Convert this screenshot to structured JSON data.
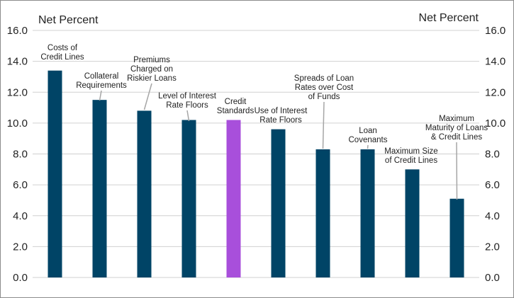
{
  "chart_data": {
    "type": "bar",
    "title": "",
    "ylabel_left": "Net Percent",
    "ylabel_right": "Net Percent",
    "xlabel": "",
    "ylim": [
      0,
      16
    ],
    "ytick_step": 2,
    "ytick_labels": [
      "0.0",
      "2.0",
      "4.0",
      "6.0",
      "8.0",
      "10.0",
      "12.0",
      "14.0",
      "16.0"
    ],
    "grid": true,
    "categories": [
      "Costs of Credit Lines",
      "Collateral Requirements",
      "Premiums Charged on Riskier Loans",
      "Level of Interest Rate Floors",
      "Credit Standards",
      "Use of Interest Rate Floors",
      "Spreads of Loan Rates over Cost of Funds",
      "Loan Covenants",
      "Maximum Size of Credit Lines",
      "Maximum Maturity of Loans & Credit Lines"
    ],
    "label_lines": [
      [
        "Costs of",
        "Credit Lines"
      ],
      [
        "Collateral",
        "Requirements"
      ],
      [
        "Premiums",
        "Charged on",
        "Riskier Loans"
      ],
      [
        "Level of Interest",
        "Rate Floors"
      ],
      [
        "Credit",
        "Standards"
      ],
      [
        "Use of Interest",
        "Rate Floors"
      ],
      [
        "Spreads of Loan",
        "Rates over Cost",
        "of Funds"
      ],
      [
        "Loan",
        "Covenants"
      ],
      [
        "Maximum Size",
        "of Credit Lines"
      ],
      [
        "Maximum",
        "Maturity of Loans",
        "& Credit Lines"
      ]
    ],
    "values": [
      13.4,
      11.5,
      10.8,
      10.2,
      10.2,
      9.6,
      8.3,
      8.3,
      7.0,
      5.1
    ],
    "highlight_index": 4,
    "colors": {
      "bar": "#004466",
      "highlight": "#A84FDB",
      "grid": "#d0d0d0",
      "leader": "#a6a6a6"
    }
  }
}
